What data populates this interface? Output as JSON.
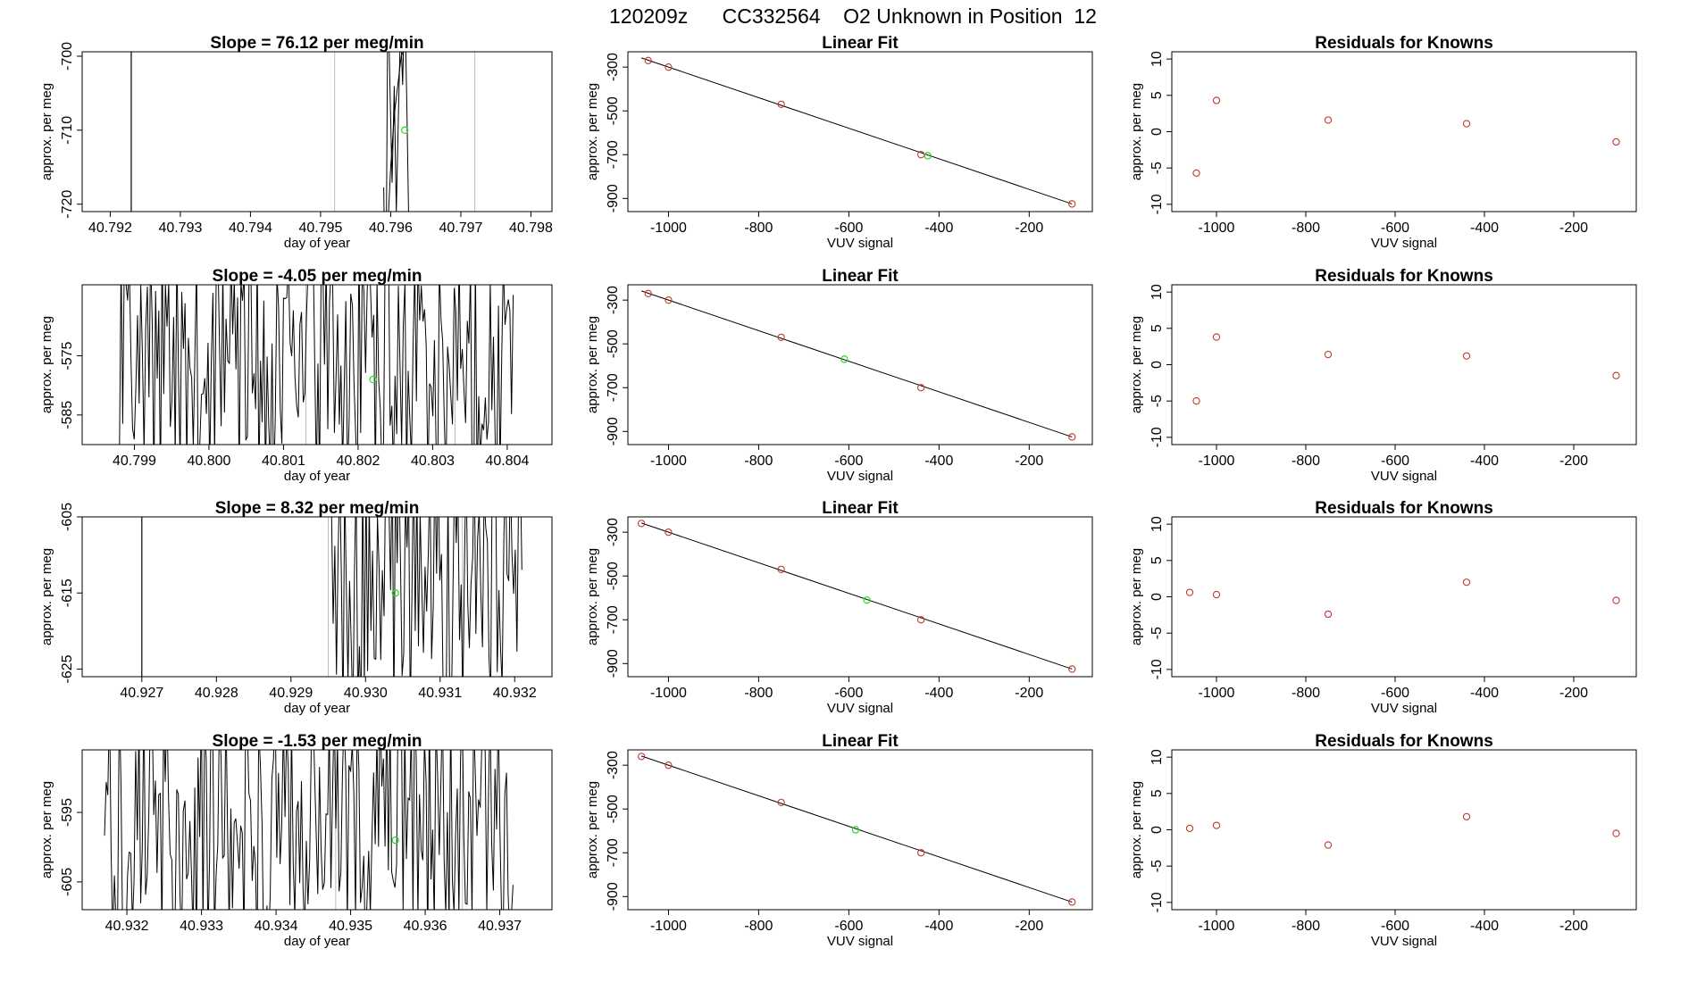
{
  "title": "120209z      CC332564    O2 Unknown in Position  12",
  "labels": {
    "time_xlabel": "day of year",
    "ylabel": "approx. per meg",
    "fit_xlabel": "VUV signal",
    "fit_title": "Linear Fit",
    "resid_title": "Residuals for Knowns"
  },
  "colors": {
    "known": "#c0392b",
    "unknown": "#22dd22",
    "line": "#000000",
    "vline": "#bbbbbb"
  },
  "chart_data": [
    {
      "type": "line",
      "panel": "time-series",
      "row": 1,
      "title": "Slope =  76.12  per meg/min",
      "xlabel": "day of year",
      "ylabel": "approx. per meg",
      "xlim": [
        40.7916,
        40.7983
      ],
      "ylim": [
        -721,
        -699.4
      ],
      "xticks": [
        40.792,
        40.793,
        40.794,
        40.795,
        40.796,
        40.797,
        40.798
      ],
      "xtick_labels": [
        "40.792",
        "40.793",
        "40.794",
        "40.795",
        "40.796",
        "40.797",
        "40.798"
      ],
      "yticks": [
        -720,
        -710,
        -700
      ],
      "ytick_labels": [
        "-720",
        "-710",
        "-700"
      ],
      "vlines_black": [
        40.7923
      ],
      "vlines_gray": [
        40.7952,
        40.7972
      ],
      "noise": {
        "start": 40.7959,
        "end": 40.7963,
        "step": 3e-05,
        "lo": -738,
        "hi": -690,
        "seed": 1
      },
      "series": [
        {
          "name": "rise",
          "x": [
            40.79595,
            40.796,
            40.79605,
            40.7961,
            40.79615,
            40.7962,
            40.79625
          ],
          "y": [
            -725,
            -715,
            -708,
            -704,
            -700,
            -699,
            -690
          ]
        }
      ],
      "unknown_point": {
        "x": 40.7962,
        "y": -710
      }
    },
    {
      "type": "scatter",
      "panel": "linear-fit",
      "row": 1,
      "title": "Linear Fit",
      "xlabel": "VUV signal",
      "ylabel": "approx. per meg",
      "xlim": [
        -1090,
        -60
      ],
      "ylim": [
        -960,
        -230
      ],
      "xticks": [
        -1000,
        -800,
        -600,
        -400,
        -200
      ],
      "xtick_labels": [
        "-1000",
        "-800",
        "-600",
        "-400",
        "-200"
      ],
      "yticks": [
        -900,
        -700,
        -500,
        -300
      ],
      "ytick_labels": [
        "-900",
        "-700",
        "-500",
        "-300"
      ],
      "known_x": [
        -1045,
        -1000,
        -750,
        -440,
        -105
      ],
      "known_y": [
        -270,
        -300,
        -470,
        -700,
        -925
      ],
      "fit_line": {
        "x": [
          -1060,
          -105
        ],
        "y": [
          -258,
          -925
        ]
      },
      "unknown": {
        "x": -425,
        "y": -705
      }
    },
    {
      "type": "scatter",
      "panel": "residuals",
      "row": 1,
      "title": "Residuals for Knowns",
      "xlabel": "VUV signal",
      "ylabel": "approx. per meg",
      "xlim": [
        -1100,
        -60
      ],
      "ylim": [
        -11,
        11
      ],
      "xticks": [
        -1000,
        -800,
        -600,
        -400,
        -200
      ],
      "xtick_labels": [
        "-1000",
        "-800",
        "-600",
        "-400",
        "-200"
      ],
      "yticks": [
        -10,
        -5,
        0,
        5,
        10
      ],
      "ytick_labels": [
        "-10",
        "-5",
        "0",
        "5",
        "10"
      ],
      "x": [
        -1045,
        -1000,
        -750,
        -440,
        -105
      ],
      "y": [
        -5.7,
        4.3,
        1.6,
        1.1,
        -1.4
      ]
    },
    {
      "type": "line",
      "panel": "time-series",
      "row": 2,
      "title": "Slope =  -4.05  per meg/min",
      "xlabel": "day of year",
      "ylabel": "approx. per meg",
      "xlim": [
        40.7983,
        40.8046
      ],
      "ylim": [
        -590,
        -563
      ],
      "xticks": [
        40.799,
        40.8,
        40.801,
        40.802,
        40.803,
        40.804
      ],
      "xtick_labels": [
        "40.799",
        "40.800",
        "40.801",
        "40.802",
        "40.803",
        "40.804"
      ],
      "yticks": [
        -585,
        -575
      ],
      "ytick_labels": [
        "-585",
        "-575"
      ],
      "vlines_black": [],
      "vlines_gray": [
        40.8013,
        40.8033
      ],
      "noise": {
        "start": 40.7988,
        "end": 40.8041,
        "step": 2.2e-05,
        "lo": -598,
        "hi": -555,
        "seed": 7
      },
      "series": [],
      "unknown_point": {
        "x": 40.8022,
        "y": -579
      }
    },
    {
      "type": "scatter",
      "panel": "linear-fit",
      "row": 2,
      "title": "Linear Fit",
      "xlabel": "VUV signal",
      "ylabel": "approx. per meg",
      "xlim": [
        -1090,
        -60
      ],
      "ylim": [
        -960,
        -230
      ],
      "xticks": [
        -1000,
        -800,
        -600,
        -400,
        -200
      ],
      "xtick_labels": [
        "-1000",
        "-800",
        "-600",
        "-400",
        "-200"
      ],
      "yticks": [
        -900,
        -700,
        -500,
        -300
      ],
      "ytick_labels": [
        "-900",
        "-700",
        "-500",
        "-300"
      ],
      "known_x": [
        -1045,
        -1000,
        -750,
        -440,
        -105
      ],
      "known_y": [
        -270,
        -300,
        -470,
        -700,
        -925
      ],
      "fit_line": {
        "x": [
          -1060,
          -105
        ],
        "y": [
          -258,
          -925
        ]
      },
      "unknown": {
        "x": -610,
        "y": -570
      }
    },
    {
      "type": "scatter",
      "panel": "residuals",
      "row": 2,
      "title": "Residuals for Knowns",
      "xlabel": "VUV signal",
      "ylabel": "approx. per meg",
      "xlim": [
        -1100,
        -60
      ],
      "ylim": [
        -11,
        11
      ],
      "xticks": [
        -1000,
        -800,
        -600,
        -400,
        -200
      ],
      "xtick_labels": [
        "-1000",
        "-800",
        "-600",
        "-400",
        "-200"
      ],
      "yticks": [
        -10,
        -5,
        0,
        5,
        10
      ],
      "ytick_labels": [
        "-10",
        "-5",
        "0",
        "5",
        "10"
      ],
      "x": [
        -1045,
        -1000,
        -750,
        -440,
        -105
      ],
      "y": [
        -5.0,
        3.8,
        1.4,
        1.2,
        -1.5
      ]
    },
    {
      "type": "line",
      "panel": "time-series",
      "row": 3,
      "title": "Slope =  8.32  per meg/min",
      "xlabel": "day of year",
      "ylabel": "approx. per meg",
      "xlim": [
        40.9262,
        40.9325
      ],
      "ylim": [
        -626,
        -605
      ],
      "xticks": [
        40.927,
        40.928,
        40.929,
        40.93,
        40.931,
        40.932
      ],
      "xtick_labels": [
        "40.927",
        "40.928",
        "40.929",
        "40.930",
        "40.931",
        "40.932"
      ],
      "yticks": [
        -625,
        -615,
        -605
      ],
      "ytick_labels": [
        "-625",
        "-615",
        "-605"
      ],
      "vlines_black": [
        40.927
      ],
      "vlines_gray": [
        40.9295,
        40.9313
      ],
      "noise": {
        "start": 40.9295,
        "end": 40.9321,
        "step": 2.2e-05,
        "lo": -632,
        "hi": -596,
        "seed": 13
      },
      "series": [],
      "unknown_point": {
        "x": 40.9304,
        "y": -615
      }
    },
    {
      "type": "scatter",
      "panel": "linear-fit",
      "row": 3,
      "title": "Linear Fit",
      "xlabel": "VUV signal",
      "ylabel": "approx. per meg",
      "xlim": [
        -1090,
        -60
      ],
      "ylim": [
        -960,
        -230
      ],
      "xticks": [
        -1000,
        -800,
        -600,
        -400,
        -200
      ],
      "xtick_labels": [
        "-1000",
        "-800",
        "-600",
        "-400",
        "-200"
      ],
      "yticks": [
        -900,
        -700,
        -500,
        -300
      ],
      "ytick_labels": [
        "-900",
        "-700",
        "-500",
        "-300"
      ],
      "known_x": [
        -1060,
        -1000,
        -750,
        -440,
        -105
      ],
      "known_y": [
        -260,
        -300,
        -470,
        -700,
        -925
      ],
      "fit_line": {
        "x": [
          -1060,
          -105
        ],
        "y": [
          -258,
          -925
        ]
      },
      "unknown": {
        "x": -560,
        "y": -610
      }
    },
    {
      "type": "scatter",
      "panel": "residuals",
      "row": 3,
      "title": "Residuals for Knowns",
      "xlabel": "VUV signal",
      "ylabel": "approx. per meg",
      "xlim": [
        -1100,
        -60
      ],
      "ylim": [
        -11,
        11
      ],
      "xticks": [
        -1000,
        -800,
        -600,
        -400,
        -200
      ],
      "xtick_labels": [
        "-1000",
        "-800",
        "-600",
        "-400",
        "-200"
      ],
      "yticks": [
        -10,
        -5,
        0,
        5,
        10
      ],
      "ytick_labels": [
        "-10",
        "-5",
        "0",
        "5",
        "10"
      ],
      "x": [
        -1060,
        -1000,
        -750,
        -440,
        -105
      ],
      "y": [
        0.6,
        0.3,
        -2.4,
        2.0,
        -0.5
      ]
    },
    {
      "type": "line",
      "panel": "time-series",
      "row": 4,
      "title": "Slope =  -1.53  per meg/min",
      "xlabel": "day of year",
      "ylabel": "approx. per meg",
      "xlim": [
        40.9314,
        40.9377
      ],
      "ylim": [
        -609,
        -586
      ],
      "xticks": [
        40.932,
        40.933,
        40.934,
        40.935,
        40.936,
        40.937
      ],
      "xtick_labels": [
        "40.932",
        "40.933",
        "40.934",
        "40.935",
        "40.936",
        "40.937"
      ],
      "yticks": [
        -605,
        -595
      ],
      "ytick_labels": [
        "-605",
        "-595"
      ],
      "vlines_black": [],
      "vlines_gray": [
        40.9348,
        40.9365
      ],
      "noise": {
        "start": 40.9317,
        "end": 40.9372,
        "step": 2.2e-05,
        "lo": -616,
        "hi": -578,
        "seed": 21
      },
      "series": [],
      "unknown_point": {
        "x": 40.9356,
        "y": -599
      }
    },
    {
      "type": "scatter",
      "panel": "linear-fit",
      "row": 4,
      "title": "Linear Fit",
      "xlabel": "VUV signal",
      "ylabel": "approx. per meg",
      "xlim": [
        -1090,
        -60
      ],
      "ylim": [
        -960,
        -230
      ],
      "xticks": [
        -1000,
        -800,
        -600,
        -400,
        -200
      ],
      "xtick_labels": [
        "-1000",
        "-800",
        "-600",
        "-400",
        "-200"
      ],
      "yticks": [
        -900,
        -700,
        -500,
        -300
      ],
      "ytick_labels": [
        "-900",
        "-700",
        "-500",
        "-300"
      ],
      "known_x": [
        -1060,
        -1000,
        -750,
        -440,
        -105
      ],
      "known_y": [
        -260,
        -300,
        -470,
        -700,
        -925
      ],
      "fit_line": {
        "x": [
          -1060,
          -105
        ],
        "y": [
          -258,
          -925
        ]
      },
      "unknown": {
        "x": -585,
        "y": -595
      }
    },
    {
      "type": "scatter",
      "panel": "residuals",
      "row": 4,
      "title": "Residuals for Knowns",
      "xlabel": "VUV signal",
      "ylabel": "approx. per meg",
      "xlim": [
        -1100,
        -60
      ],
      "ylim": [
        -11,
        11
      ],
      "xticks": [
        -1000,
        -800,
        -600,
        -400,
        -200
      ],
      "xtick_labels": [
        "-1000",
        "-800",
        "-600",
        "-400",
        "-200"
      ],
      "yticks": [
        -10,
        -5,
        0,
        5,
        10
      ],
      "ytick_labels": [
        "-10",
        "-5",
        "0",
        "5",
        "10"
      ],
      "x": [
        -1060,
        -1000,
        -750,
        -440,
        -105
      ],
      "y": [
        0.2,
        0.6,
        -2.1,
        1.8,
        -0.5
      ]
    }
  ]
}
